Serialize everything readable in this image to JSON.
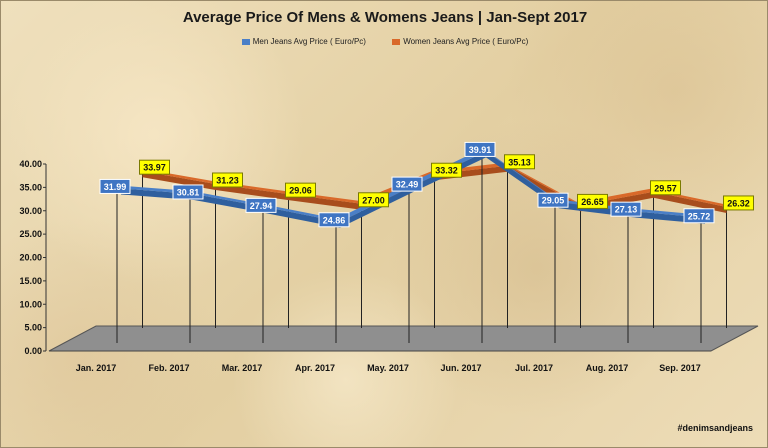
{
  "title": "Average Price Of Mens & Womens Jeans | Jan-Sept 2017",
  "watermark": "#denimsandjeans",
  "colors": {
    "men": "#4a7fc7",
    "men_dark": "#2f5f9e",
    "women": "#d9692a",
    "women_dark": "#a84d1c",
    "label_bg_men": "#3f75c3",
    "label_bg_women": "#ffff00",
    "floor": "#8f8f8f"
  },
  "chart_data": {
    "type": "line",
    "categories": [
      "Jan. 2017",
      "Feb. 2017",
      "Mar. 2017",
      "Apr. 2017",
      "May. 2017",
      "Jun. 2017",
      "Jul. 2017",
      "Aug. 2017",
      "Sep. 2017"
    ],
    "series": [
      {
        "name": "Men Jeans Avg Price ( Euro/Pc)",
        "values": [
          31.99,
          30.81,
          27.94,
          24.86,
          32.49,
          39.91,
          29.05,
          27.13,
          25.72
        ],
        "labels": [
          "31.99",
          "30.81",
          "27.94",
          "24.86",
          "32.49",
          "39.91",
          "29.05",
          "27.13",
          "25.72"
        ]
      },
      {
        "name": "Women Jeans Avg Price ( Euro/Pc)",
        "values": [
          33.97,
          31.23,
          29.06,
          27.0,
          33.32,
          35.13,
          26.65,
          29.57,
          26.32
        ],
        "labels": [
          "33.97",
          "31.23",
          "29.06",
          "27.00",
          "33.32",
          "35.13",
          "26.65",
          "29.57",
          "26.32"
        ]
      }
    ],
    "ylim": [
      0,
      40
    ],
    "yticks": [
      "0.00",
      "5.00",
      "10.00",
      "15.00",
      "20.00",
      "25.00",
      "30.00",
      "35.00",
      "40.00"
    ],
    "legend": "top-center",
    "grid": false,
    "style": "3d-line"
  }
}
